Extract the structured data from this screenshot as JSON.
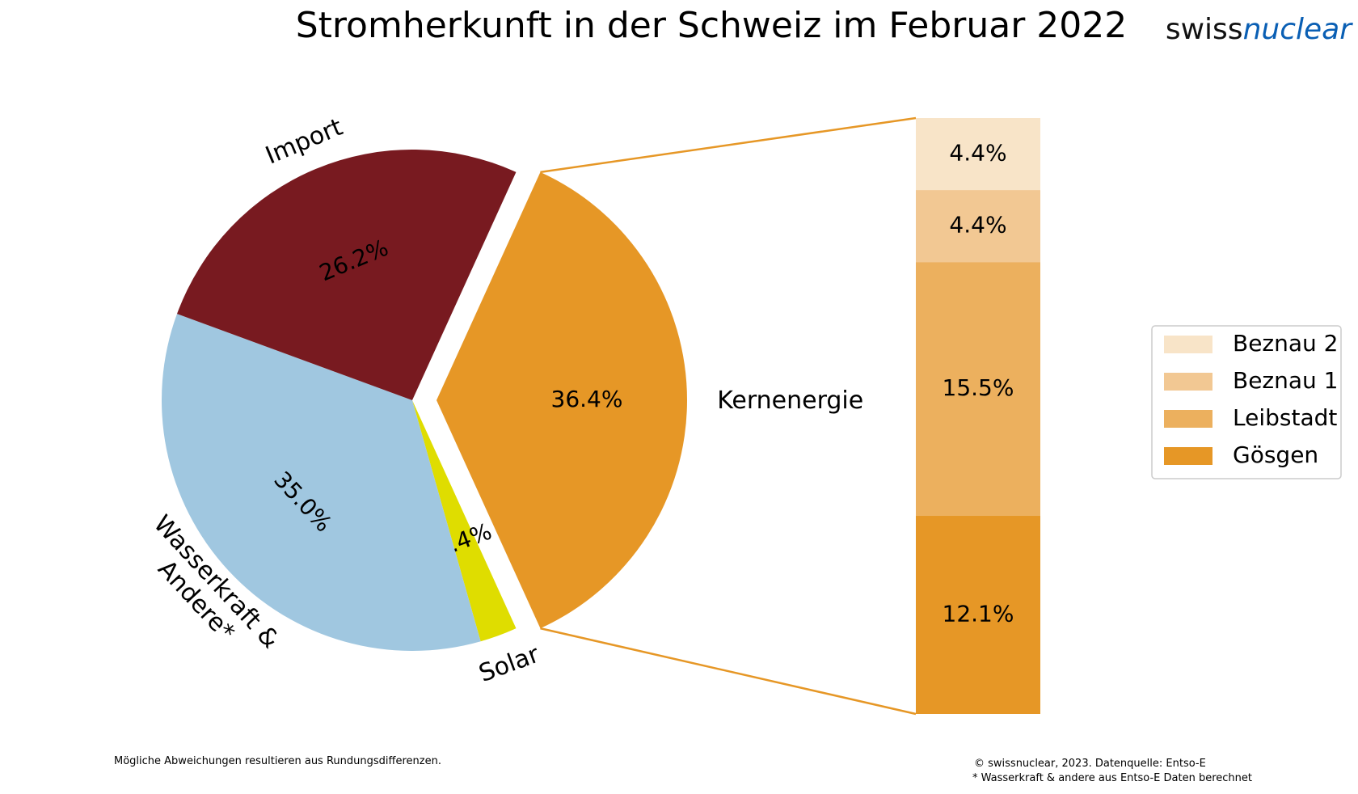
{
  "brand": {
    "part1": "swiss",
    "part2": "nuclear",
    "color2": "#0a5fb4"
  },
  "chart_data": {
    "type": "bar-of-pie",
    "title": "Stromherkunft in der Schweiz im Februar 2022",
    "pie": [
      {
        "name": "Kernenergie",
        "label": "Kernenergie",
        "value": 36.4,
        "value_label": "36.4%",
        "color": "#e69726",
        "exploded": true
      },
      {
        "name": "Solar",
        "label": "Solar",
        "value": 2.4,
        "value_label": "2.4%",
        "color": "#dfdd00"
      },
      {
        "name": "Wasserkraft",
        "label": "Wasserkraft & Andere*",
        "label_lines": [
          "Wasserkraft &",
          "Andere*"
        ],
        "value": 35.0,
        "value_label": "35.0%",
        "color": "#a0c7e0"
      },
      {
        "name": "Import",
        "label": "Import",
        "value": 26.2,
        "value_label": "26.2%",
        "color": "#781a20"
      }
    ],
    "bar": {
      "stack_order_top_to_bottom": [
        "Beznau 2",
        "Beznau 1",
        "Leibstadt",
        "Gösgen"
      ],
      "segments": [
        {
          "name": "Beznau 2",
          "value": 4.4,
          "value_label": "4.4%",
          "color": "#f8e4c8"
        },
        {
          "name": "Beznau 1",
          "value": 4.4,
          "value_label": "4.4%",
          "color": "#f2c893"
        },
        {
          "name": "Leibstadt",
          "value": 15.5,
          "value_label": "15.5%",
          "color": "#ecb05e"
        },
        {
          "name": "Gösgen",
          "value": 12.1,
          "value_label": "12.1%",
          "color": "#e69726"
        }
      ]
    },
    "legend": [
      "Beznau 2",
      "Beznau 1",
      "Leibstadt",
      "Gösgen"
    ],
    "legend_position": "right",
    "connector_color": "#e69726"
  },
  "notes": {
    "rounding": "Mögliche Abweichungen resultieren aus Rundungsdifferenzen.",
    "copyright": "© swissnuclear, 2023. Datenquelle: Entso-E",
    "footnote": "* Wasserkraft & andere aus Entso-E Daten berechnet"
  }
}
